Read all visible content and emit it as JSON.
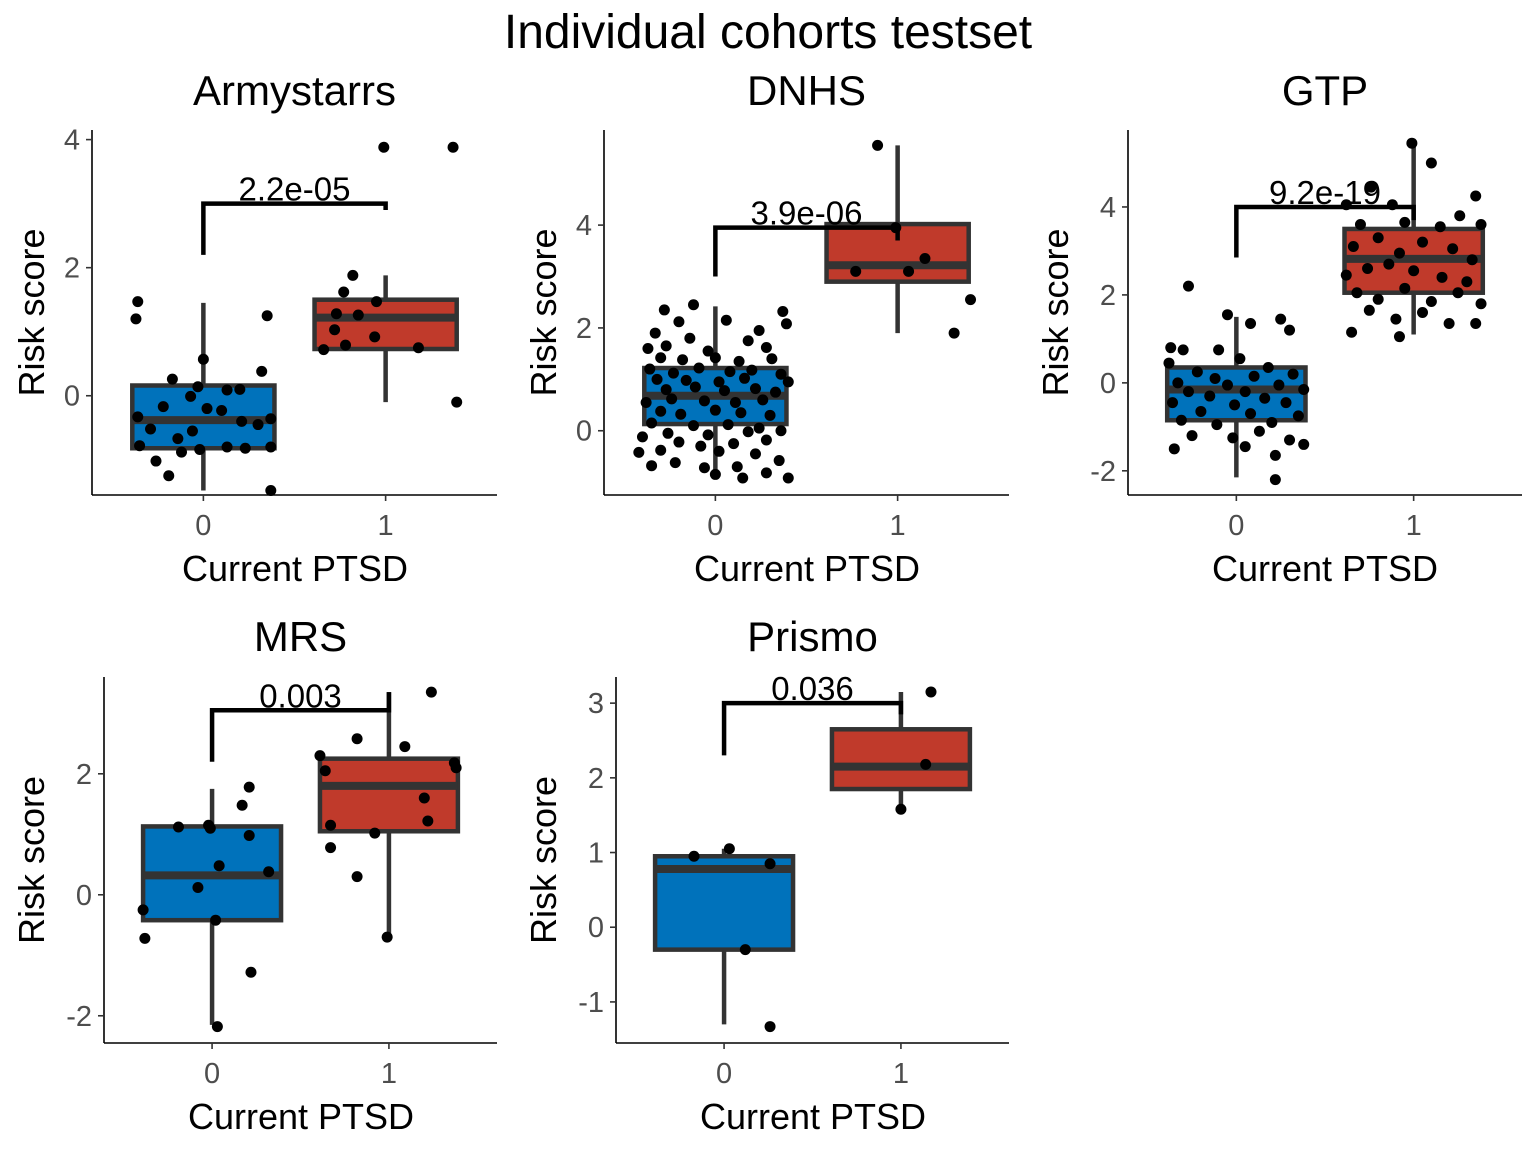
{
  "figure": {
    "title": "Individual cohorts testset"
  },
  "chart_data": [
    {
      "type": "box",
      "title": "Armystarrs",
      "xlabel": "Current PTSD",
      "ylabel": "Risk score",
      "categories": [
        "0",
        "1"
      ],
      "yticks": [
        0,
        2,
        4
      ],
      "ylim": [
        -1.55,
        4.15
      ],
      "colors": [
        "#0072bb",
        "#c03a2b"
      ],
      "boxes": [
        {
          "category": "0",
          "q1": -0.82,
          "median": -0.38,
          "q3": 0.16,
          "whisker_low": -1.48,
          "whisker_high": 1.45
        },
        {
          "category": "1",
          "q1": 0.73,
          "median": 1.22,
          "q3": 1.5,
          "whisker_low": -0.1,
          "whisker_high": 1.88
        }
      ],
      "points": [
        {
          "x": -0.36,
          "y": 1.47
        },
        {
          "x": -0.37,
          "y": 1.2
        },
        {
          "x": 0.35,
          "y": 1.25
        },
        {
          "x": 0.32,
          "y": 0.38
        },
        {
          "x": 0.0,
          "y": 0.57
        },
        {
          "x": -0.17,
          "y": 0.26
        },
        {
          "x": -0.07,
          "y": -0.01
        },
        {
          "x": -0.03,
          "y": 0.14
        },
        {
          "x": 0.13,
          "y": 0.09
        },
        {
          "x": 0.2,
          "y": 0.1
        },
        {
          "x": 0.02,
          "y": -0.2
        },
        {
          "x": -0.22,
          "y": -0.17
        },
        {
          "x": 0.1,
          "y": -0.23
        },
        {
          "x": -0.36,
          "y": -0.33
        },
        {
          "x": -0.29,
          "y": -0.52
        },
        {
          "x": 0.21,
          "y": -0.4
        },
        {
          "x": 0.3,
          "y": -0.45
        },
        {
          "x": 0.37,
          "y": -0.36
        },
        {
          "x": -0.35,
          "y": -0.78
        },
        {
          "x": -0.14,
          "y": -0.67
        },
        {
          "x": -0.06,
          "y": -0.55
        },
        {
          "x": -0.12,
          "y": -0.88
        },
        {
          "x": -0.02,
          "y": -0.84
        },
        {
          "x": 0.13,
          "y": -0.8
        },
        {
          "x": 0.23,
          "y": -0.82
        },
        {
          "x": 0.37,
          "y": -0.8
        },
        {
          "x": -0.26,
          "y": -1.02
        },
        {
          "x": -0.19,
          "y": -1.25
        },
        {
          "x": 0.37,
          "y": -1.48
        },
        {
          "x": 0.99,
          "y": 3.88
        },
        {
          "x": 1.37,
          "y": 3.88
        },
        {
          "x": 0.82,
          "y": 1.88
        },
        {
          "x": 0.77,
          "y": 1.62
        },
        {
          "x": 0.95,
          "y": 1.47
        },
        {
          "x": 0.73,
          "y": 1.28
        },
        {
          "x": 0.85,
          "y": 1.26
        },
        {
          "x": 0.72,
          "y": 1.03
        },
        {
          "x": 0.94,
          "y": 0.92
        },
        {
          "x": 0.78,
          "y": 0.79
        },
        {
          "x": 0.66,
          "y": 0.72
        },
        {
          "x": 1.18,
          "y": 0.75
        },
        {
          "x": 1.39,
          "y": -0.1
        }
      ],
      "comparison": {
        "label": "2.2e-05",
        "y": 3.0,
        "left_drop_to": 2.2,
        "right_drop_to": 2.9
      }
    },
    {
      "type": "box",
      "title": "DNHS",
      "xlabel": "Current PTSD",
      "ylabel": "Risk score",
      "categories": [
        "0",
        "1"
      ],
      "yticks": [
        0,
        2,
        4
      ],
      "ylim": [
        -1.25,
        5.85
      ],
      "colors": [
        "#0072bb",
        "#c03a2b"
      ],
      "boxes": [
        {
          "category": "0",
          "q1": 0.13,
          "median": 0.68,
          "q3": 1.22,
          "whisker_low": -0.92,
          "whisker_high": 2.42
        },
        {
          "category": "1",
          "q1": 2.9,
          "median": 3.22,
          "q3": 4.02,
          "whisker_low": 1.9,
          "whisker_high": 5.55
        }
      ],
      "points": [
        {
          "x": -0.28,
          "y": 2.35
        },
        {
          "x": -0.12,
          "y": 2.45
        },
        {
          "x": 0.37,
          "y": 2.32
        },
        {
          "x": -0.2,
          "y": 2.12
        },
        {
          "x": 0.06,
          "y": 2.15
        },
        {
          "x": 0.24,
          "y": 1.95
        },
        {
          "x": 0.39,
          "y": 2.08
        },
        {
          "x": -0.33,
          "y": 1.9
        },
        {
          "x": -0.14,
          "y": 1.8
        },
        {
          "x": 0.18,
          "y": 1.75
        },
        {
          "x": -0.37,
          "y": 1.6
        },
        {
          "x": -0.27,
          "y": 1.65
        },
        {
          "x": -0.04,
          "y": 1.55
        },
        {
          "x": 0.28,
          "y": 1.62
        },
        {
          "x": -0.3,
          "y": 1.42
        },
        {
          "x": -0.18,
          "y": 1.38
        },
        {
          "x": 0.0,
          "y": 1.42
        },
        {
          "x": 0.13,
          "y": 1.35
        },
        {
          "x": 0.31,
          "y": 1.4
        },
        {
          "x": -0.36,
          "y": 1.2
        },
        {
          "x": -0.23,
          "y": 1.12
        },
        {
          "x": -0.09,
          "y": 1.22
        },
        {
          "x": 0.08,
          "y": 1.15
        },
        {
          "x": 0.2,
          "y": 1.18
        },
        {
          "x": 0.36,
          "y": 1.1
        },
        {
          "x": -0.32,
          "y": 1.0
        },
        {
          "x": -0.16,
          "y": 0.98
        },
        {
          "x": 0.02,
          "y": 0.95
        },
        {
          "x": 0.16,
          "y": 1.02
        },
        {
          "x": 0.4,
          "y": 0.95
        },
        {
          "x": -0.27,
          "y": 0.8
        },
        {
          "x": -0.11,
          "y": 0.85
        },
        {
          "x": 0.05,
          "y": 0.78
        },
        {
          "x": 0.22,
          "y": 0.82
        },
        {
          "x": 0.33,
          "y": 0.75
        },
        {
          "x": -0.38,
          "y": 0.55
        },
        {
          "x": -0.24,
          "y": 0.62
        },
        {
          "x": -0.06,
          "y": 0.58
        },
        {
          "x": 0.11,
          "y": 0.55
        },
        {
          "x": 0.26,
          "y": 0.6
        },
        {
          "x": -0.3,
          "y": 0.38
        },
        {
          "x": -0.19,
          "y": 0.32
        },
        {
          "x": 0.0,
          "y": 0.4
        },
        {
          "x": 0.14,
          "y": 0.35
        },
        {
          "x": 0.3,
          "y": 0.3
        },
        {
          "x": -0.35,
          "y": 0.15
        },
        {
          "x": -0.12,
          "y": 0.1
        },
        {
          "x": 0.07,
          "y": 0.12
        },
        {
          "x": 0.24,
          "y": 0.05
        },
        {
          "x": -0.26,
          "y": -0.05
        },
        {
          "x": -0.04,
          "y": -0.08
        },
        {
          "x": 0.18,
          "y": -0.02
        },
        {
          "x": 0.36,
          "y": 0.0
        },
        {
          "x": -0.4,
          "y": -0.12
        },
        {
          "x": -0.2,
          "y": -0.22
        },
        {
          "x": 0.1,
          "y": -0.25
        },
        {
          "x": 0.28,
          "y": -0.18
        },
        {
          "x": -0.08,
          "y": -0.3
        },
        {
          "x": -0.3,
          "y": -0.38
        },
        {
          "x": 0.02,
          "y": -0.4
        },
        {
          "x": 0.22,
          "y": -0.45
        },
        {
          "x": -0.42,
          "y": -0.42
        },
        {
          "x": 0.35,
          "y": -0.58
        },
        {
          "x": -0.22,
          "y": -0.62
        },
        {
          "x": -0.06,
          "y": -0.72
        },
        {
          "x": 0.12,
          "y": -0.7
        },
        {
          "x": 0.28,
          "y": -0.82
        },
        {
          "x": -0.35,
          "y": -0.68
        },
        {
          "x": 0.0,
          "y": -0.85
        },
        {
          "x": 0.15,
          "y": -0.92
        },
        {
          "x": 0.4,
          "y": -0.92
        },
        {
          "x": 0.89,
          "y": 5.55
        },
        {
          "x": 0.99,
          "y": 3.95
        },
        {
          "x": 0.77,
          "y": 3.1
        },
        {
          "x": 1.06,
          "y": 3.1
        },
        {
          "x": 1.15,
          "y": 3.35
        },
        {
          "x": 1.4,
          "y": 2.55
        },
        {
          "x": 1.31,
          "y": 1.9
        }
      ],
      "comparison": {
        "label": "3.9e-06",
        "y": 3.95,
        "left_drop_to": 3.0,
        "right_drop_to": 3.7
      }
    },
    {
      "type": "box",
      "title": "GTP",
      "xlabel": "Current PTSD",
      "ylabel": "Risk score",
      "categories": [
        "0",
        "1"
      ],
      "yticks": [
        -2,
        0,
        2,
        4
      ],
      "ylim": [
        -2.55,
        5.75
      ],
      "colors": [
        "#0072bb",
        "#c03a2b"
      ],
      "boxes": [
        {
          "category": "0",
          "q1": -0.85,
          "median": -0.15,
          "q3": 0.35,
          "whisker_low": -2.15,
          "whisker_high": 1.5
        },
        {
          "category": "1",
          "q1": 2.05,
          "median": 2.82,
          "q3": 3.5,
          "whisker_low": 1.1,
          "whisker_high": 5.4
        }
      ],
      "points": [
        {
          "x": -0.27,
          "y": 2.2
        },
        {
          "x": -0.05,
          "y": 1.55
        },
        {
          "x": 0.08,
          "y": 1.35
        },
        {
          "x": 0.25,
          "y": 1.45
        },
        {
          "x": 0.3,
          "y": 1.2
        },
        {
          "x": -0.37,
          "y": 0.8
        },
        {
          "x": -0.3,
          "y": 0.75
        },
        {
          "x": -0.1,
          "y": 0.75
        },
        {
          "x": 0.02,
          "y": 0.55
        },
        {
          "x": 0.18,
          "y": 0.35
        },
        {
          "x": -0.38,
          "y": 0.45
        },
        {
          "x": -0.22,
          "y": 0.25
        },
        {
          "x": -0.12,
          "y": 0.1
        },
        {
          "x": 0.1,
          "y": 0.15
        },
        {
          "x": 0.32,
          "y": 0.2
        },
        {
          "x": -0.33,
          "y": 0.0
        },
        {
          "x": -0.05,
          "y": -0.05
        },
        {
          "x": 0.24,
          "y": -0.05
        },
        {
          "x": 0.38,
          "y": -0.15
        },
        {
          "x": -0.27,
          "y": -0.2
        },
        {
          "x": -0.15,
          "y": -0.3
        },
        {
          "x": 0.05,
          "y": -0.2
        },
        {
          "x": 0.16,
          "y": -0.35
        },
        {
          "x": -0.36,
          "y": -0.45
        },
        {
          "x": -0.01,
          "y": -0.5
        },
        {
          "x": 0.28,
          "y": -0.45
        },
        {
          "x": -0.2,
          "y": -0.65
        },
        {
          "x": 0.08,
          "y": -0.7
        },
        {
          "x": 0.35,
          "y": -0.75
        },
        {
          "x": -0.31,
          "y": -0.85
        },
        {
          "x": -0.11,
          "y": -0.95
        },
        {
          "x": 0.2,
          "y": -0.9
        },
        {
          "x": -0.25,
          "y": -1.2
        },
        {
          "x": -0.02,
          "y": -1.25
        },
        {
          "x": 0.13,
          "y": -1.1
        },
        {
          "x": 0.3,
          "y": -1.3
        },
        {
          "x": -0.35,
          "y": -1.5
        },
        {
          "x": 0.05,
          "y": -1.45
        },
        {
          "x": 0.22,
          "y": -1.65
        },
        {
          "x": 0.38,
          "y": -1.4
        },
        {
          "x": 0.22,
          "y": -2.2
        },
        {
          "x": 0.99,
          "y": 5.45
        },
        {
          "x": 1.1,
          "y": 5.0
        },
        {
          "x": 0.62,
          "y": 4.05
        },
        {
          "x": 0.76,
          "y": 4.45
        },
        {
          "x": 0.88,
          "y": 4.05
        },
        {
          "x": 1.35,
          "y": 4.25
        },
        {
          "x": 0.7,
          "y": 3.6
        },
        {
          "x": 0.95,
          "y": 3.65
        },
        {
          "x": 1.15,
          "y": 3.55
        },
        {
          "x": 1.26,
          "y": 3.8
        },
        {
          "x": 1.38,
          "y": 3.6
        },
        {
          "x": 0.66,
          "y": 3.1
        },
        {
          "x": 0.8,
          "y": 3.3
        },
        {
          "x": 0.92,
          "y": 2.95
        },
        {
          "x": 1.05,
          "y": 3.2
        },
        {
          "x": 1.22,
          "y": 3.05
        },
        {
          "x": 1.33,
          "y": 2.8
        },
        {
          "x": 0.62,
          "y": 2.45
        },
        {
          "x": 0.74,
          "y": 2.6
        },
        {
          "x": 0.86,
          "y": 2.7
        },
        {
          "x": 1.0,
          "y": 2.55
        },
        {
          "x": 1.16,
          "y": 2.4
        },
        {
          "x": 1.3,
          "y": 2.3
        },
        {
          "x": 0.68,
          "y": 2.05
        },
        {
          "x": 0.8,
          "y": 1.9
        },
        {
          "x": 0.95,
          "y": 2.15
        },
        {
          "x": 1.1,
          "y": 1.85
        },
        {
          "x": 1.25,
          "y": 2.05
        },
        {
          "x": 1.38,
          "y": 1.8
        },
        {
          "x": 0.75,
          "y": 1.65
        },
        {
          "x": 0.9,
          "y": 1.45
        },
        {
          "x": 1.05,
          "y": 1.6
        },
        {
          "x": 1.2,
          "y": 1.35
        },
        {
          "x": 0.65,
          "y": 1.15
        },
        {
          "x": 0.92,
          "y": 1.05
        },
        {
          "x": 1.35,
          "y": 1.35
        }
      ],
      "comparison": {
        "label": "9.2e-19",
        "y": 4.0,
        "left_drop_to": 2.85,
        "right_drop_to": 3.7
      }
    },
    {
      "type": "box",
      "title": "MRS",
      "xlabel": "Current PTSD",
      "ylabel": "Risk score",
      "categories": [
        "0",
        "1"
      ],
      "yticks": [
        -2,
        0,
        2
      ],
      "ylim": [
        -2.45,
        3.6
      ],
      "colors": [
        "#0072bb",
        "#c03a2b"
      ],
      "boxes": [
        {
          "category": "0",
          "q1": -0.42,
          "median": 0.32,
          "q3": 1.13,
          "whisker_low": -2.15,
          "whisker_high": 1.75
        },
        {
          "category": "1",
          "q1": 1.05,
          "median": 1.8,
          "q3": 2.25,
          "whisker_low": -0.7,
          "whisker_high": 3.35
        }
      ],
      "points": [
        {
          "x": 0.21,
          "y": 1.78
        },
        {
          "x": 0.17,
          "y": 1.48
        },
        {
          "x": -0.19,
          "y": 1.12
        },
        {
          "x": -0.02,
          "y": 1.15
        },
        {
          "x": -0.01,
          "y": 1.1
        },
        {
          "x": 0.21,
          "y": 0.98
        },
        {
          "x": 0.04,
          "y": 0.48
        },
        {
          "x": 0.32,
          "y": 0.38
        },
        {
          "x": -0.08,
          "y": 0.12
        },
        {
          "x": -0.39,
          "y": -0.25
        },
        {
          "x": 0.02,
          "y": -0.42
        },
        {
          "x": -0.38,
          "y": -0.72
        },
        {
          "x": 0.22,
          "y": -1.28
        },
        {
          "x": 0.03,
          "y": -2.18
        },
        {
          "x": 1.24,
          "y": 3.35
        },
        {
          "x": 0.82,
          "y": 2.58
        },
        {
          "x": 1.09,
          "y": 2.45
        },
        {
          "x": 0.61,
          "y": 2.3
        },
        {
          "x": 0.64,
          "y": 2.05
        },
        {
          "x": 1.37,
          "y": 2.18
        },
        {
          "x": 1.38,
          "y": 2.1
        },
        {
          "x": 1.2,
          "y": 1.6
        },
        {
          "x": 0.67,
          "y": 1.15
        },
        {
          "x": 1.22,
          "y": 1.22
        },
        {
          "x": 0.92,
          "y": 1.02
        },
        {
          "x": 0.67,
          "y": 0.78
        },
        {
          "x": 0.82,
          "y": 0.3
        },
        {
          "x": 0.99,
          "y": -0.7
        }
      ],
      "comparison": {
        "label": "0.003",
        "y": 3.05,
        "left_drop_to": 2.2,
        "right_drop_to": 3.35
      }
    },
    {
      "type": "box",
      "title": "Prismo",
      "xlabel": "Current PTSD",
      "ylabel": "Risk score",
      "categories": [
        "0",
        "1"
      ],
      "yticks": [
        -1,
        0,
        1,
        2,
        3
      ],
      "ylim": [
        -1.55,
        3.35
      ],
      "colors": [
        "#0072bb",
        "#c03a2b"
      ],
      "boxes": [
        {
          "category": "0",
          "q1": -0.3,
          "median": 0.78,
          "q3": 0.95,
          "whisker_low": -1.3,
          "whisker_high": 1.05
        },
        {
          "category": "1",
          "q1": 1.85,
          "median": 2.15,
          "q3": 2.65,
          "whisker_low": 1.6,
          "whisker_high": 3.15
        }
      ],
      "points": [
        {
          "x": -0.17,
          "y": 0.95
        },
        {
          "x": 0.03,
          "y": 1.05
        },
        {
          "x": 0.26,
          "y": 0.85
        },
        {
          "x": 0.12,
          "y": -0.3
        },
        {
          "x": 0.26,
          "y": -1.33
        },
        {
          "x": 1.17,
          "y": 3.15
        },
        {
          "x": 1.14,
          "y": 2.18
        },
        {
          "x": 1.0,
          "y": 1.58
        }
      ],
      "comparison": {
        "label": "0.036",
        "y": 3.0,
        "left_drop_to": 2.3,
        "right_drop_to": 2.85
      }
    }
  ]
}
